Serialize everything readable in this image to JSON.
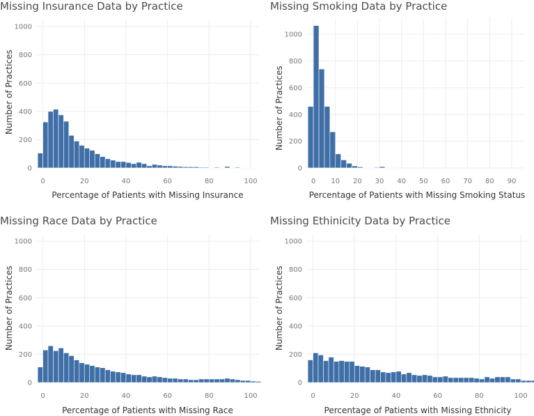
{
  "chart_data": [
    {
      "type": "bar",
      "title": "Missing Insurance Data by Practice",
      "xlabel": "Percentage of Patients with Missing Insurance",
      "ylabel": "Number of Practices",
      "bin_width": 2.5,
      "bin_start": -2.5,
      "xlim": [
        -3.2,
        104
      ],
      "ylim": [
        0,
        1030
      ],
      "xticks": [
        0,
        20,
        40,
        60,
        80,
        100
      ],
      "yticks": [
        0,
        200,
        400,
        600,
        800,
        1000
      ],
      "values": [
        105,
        325,
        400,
        415,
        375,
        330,
        230,
        190,
        160,
        140,
        125,
        100,
        80,
        65,
        55,
        45,
        45,
        38,
        30,
        40,
        30,
        15,
        25,
        20,
        15,
        15,
        12,
        10,
        8,
        8,
        8,
        5,
        5,
        3,
        5,
        3,
        10,
        3,
        5,
        2,
        3,
        2,
        2
      ]
    },
    {
      "type": "bar",
      "title": "Missing Smoking Data by Practice",
      "xlabel": "Percentage of Patients with Missing Smoking Status",
      "ylabel": "Number of Practices",
      "bin_width": 2.5,
      "bin_start": -2.5,
      "xlim": [
        -3.2,
        96
      ],
      "ylim": [
        0,
        1100
      ],
      "xticks": [
        0,
        10,
        20,
        30,
        40,
        50,
        60,
        70,
        80,
        90
      ],
      "yticks": [
        0,
        200,
        400,
        600,
        800,
        1000
      ],
      "values": [
        460,
        1065,
        740,
        460,
        270,
        105,
        60,
        35,
        15,
        8,
        3,
        3,
        5,
        10,
        2,
        3
      ]
    },
    {
      "type": "bar",
      "title": "Missing Race Data by Practice",
      "xlabel": "Percentage of Patients with Missing Race",
      "ylabel": "Number of Practices",
      "bin_width": 2.5,
      "bin_start": -2.5,
      "xlim": [
        -3.2,
        104
      ],
      "ylim": [
        0,
        1030
      ],
      "xticks": [
        0,
        20,
        40,
        60,
        80,
        100
      ],
      "yticks": [
        0,
        200,
        400,
        600,
        800,
        1000
      ],
      "values": [
        110,
        230,
        260,
        225,
        245,
        210,
        190,
        160,
        140,
        130,
        120,
        110,
        105,
        90,
        80,
        75,
        70,
        60,
        55,
        55,
        45,
        40,
        45,
        40,
        35,
        30,
        30,
        25,
        25,
        20,
        20,
        25,
        25,
        25,
        25,
        25,
        30,
        25,
        20,
        15,
        15,
        10,
        8
      ]
    },
    {
      "type": "bar",
      "title": "Missing Ethinicity Data by Practice",
      "xlabel": "Percentage of Patients with Missing Ethnicity",
      "ylabel": "Number of Practices",
      "bin_width": 2.5,
      "bin_start": -2.5,
      "xlim": [
        -3.2,
        104
      ],
      "ylim": [
        0,
        1030
      ],
      "xticks": [
        0,
        20,
        40,
        60,
        80,
        100
      ],
      "yticks": [
        0,
        200,
        400,
        600,
        800,
        1000
      ],
      "values": [
        160,
        210,
        195,
        155,
        180,
        150,
        155,
        150,
        150,
        120,
        115,
        110,
        90,
        90,
        75,
        70,
        75,
        80,
        60,
        70,
        55,
        50,
        55,
        50,
        40,
        40,
        45,
        35,
        35,
        35,
        35,
        35,
        30,
        25,
        40,
        30,
        40,
        40,
        40,
        25,
        25,
        15,
        15,
        15
      ]
    }
  ]
}
